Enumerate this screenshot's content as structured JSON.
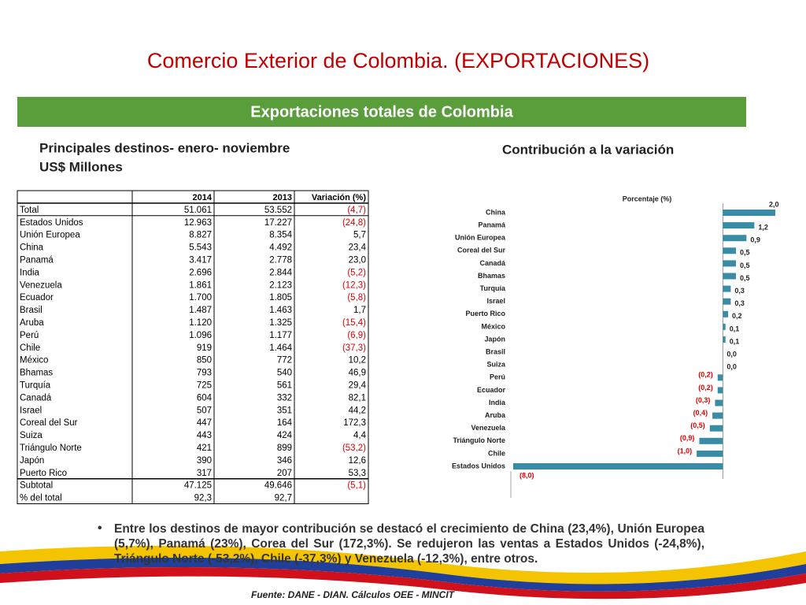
{
  "title": "Comercio Exterior de Colombia. (EXPORTACIONES)",
  "banner": "Exportaciones totales de Colombia",
  "table_heading": [
    "Principales destinos- enero- noviembre",
    "US$ Millones"
  ],
  "table": {
    "header": [
      "2014",
      "2013",
      "Variación (%)"
    ],
    "rows": [
      [
        "Total",
        "51.061",
        "53.552",
        "(4,7)"
      ],
      [
        "Estados Unidos",
        "12.963",
        "17.227",
        "(24,8)"
      ],
      [
        "Unión Europea",
        "8.827",
        "8.354",
        "5,7"
      ],
      [
        "China",
        "5.543",
        "4.492",
        "23,4"
      ],
      [
        "Panamá",
        "3.417",
        "2.778",
        "23,0"
      ],
      [
        "India",
        "2.696",
        "2.844",
        "(5,2)"
      ],
      [
        "Venezuela",
        "1.861",
        "2.123",
        "(12,3)"
      ],
      [
        "Ecuador",
        "1.700",
        "1.805",
        "(5,8)"
      ],
      [
        "Brasil",
        "1.487",
        "1.463",
        "1,7"
      ],
      [
        "Aruba",
        "1.120",
        "1.325",
        "(15,4)"
      ],
      [
        "Perú",
        "1.096",
        "1.177",
        "(6,9)"
      ],
      [
        "Chile",
        "919",
        "1.464",
        "(37,3)"
      ],
      [
        "México",
        "850",
        "772",
        "10,2"
      ],
      [
        "Bhamas",
        "793",
        "540",
        "46,9"
      ],
      [
        "Turquía",
        "725",
        "561",
        "29,4"
      ],
      [
        "Canadá",
        "604",
        "332",
        "82,1"
      ],
      [
        "Israel",
        "507",
        "351",
        "44,2"
      ],
      [
        "Coreal del Sur",
        "447",
        "164",
        "172,3"
      ],
      [
        "Suiza",
        "443",
        "424",
        "4,4"
      ],
      [
        "Triángulo Norte",
        "421",
        "899",
        "(53,2)"
      ],
      [
        "Japón",
        "390",
        "346",
        "12,6"
      ],
      [
        "Puerto Rico",
        "317",
        "207",
        "53,3"
      ],
      [
        "Subtotal",
        "47.125",
        "49.646",
        "(5,1)"
      ],
      [
        "% del total",
        "92,3",
        "92,7"
      ]
    ]
  },
  "chart_data": {
    "type": "bar",
    "orientation": "horizontal",
    "title": "Contribución a la variación",
    "xlabel": "Porcentaje (%)",
    "categories": [
      "China",
      "Panamá",
      "Unión Europea",
      "Coreal del Sur",
      "Canadá",
      "Bhamas",
      "Turquía",
      "Israel",
      "Puerto Rico",
      "México",
      "Japón",
      "Brasil",
      "Suiza",
      "Perú",
      "Ecuador",
      "India",
      "Aruba",
      "Venezuela",
      "Triángulo Norte",
      "Chile",
      "Estados Unidos"
    ],
    "values": [
      2.0,
      1.2,
      0.9,
      0.5,
      0.5,
      0.5,
      0.3,
      0.3,
      0.2,
      0.1,
      0.1,
      0.0,
      0.0,
      -0.2,
      -0.2,
      -0.3,
      -0.4,
      -0.5,
      -0.9,
      -1.0,
      -8.0
    ],
    "value_labels": [
      "2,0",
      "1,2",
      "0,9",
      "0,5",
      "0,5",
      "0,5",
      "0,3",
      "0,3",
      "0,2",
      "0,1",
      "0,1",
      "0,0",
      "0,0",
      "(0,2)",
      "(0,2)",
      "(0,3)",
      "(0,4)",
      "(0,5)",
      "(0,9)",
      "(1,0)",
      "(8,0)"
    ],
    "color": "#3a8ca6",
    "xlim": [
      -8,
      2
    ]
  },
  "bullet": "Entre los destinos de mayor contribución se destacó el crecimiento de China (23,4%), Unión Europea (5,7%), Panamá (23%), Corea del Sur (172,3%). Se redujeron las ventas a Estados Unidos (-24,8%), Triángulo Norte (-53,2%), Chile (-37,3%) y Venezuela (-12,3%), entre otros.",
  "source": "Fuente: DANE - DIAN. Cálculos OEE - MINCIT"
}
